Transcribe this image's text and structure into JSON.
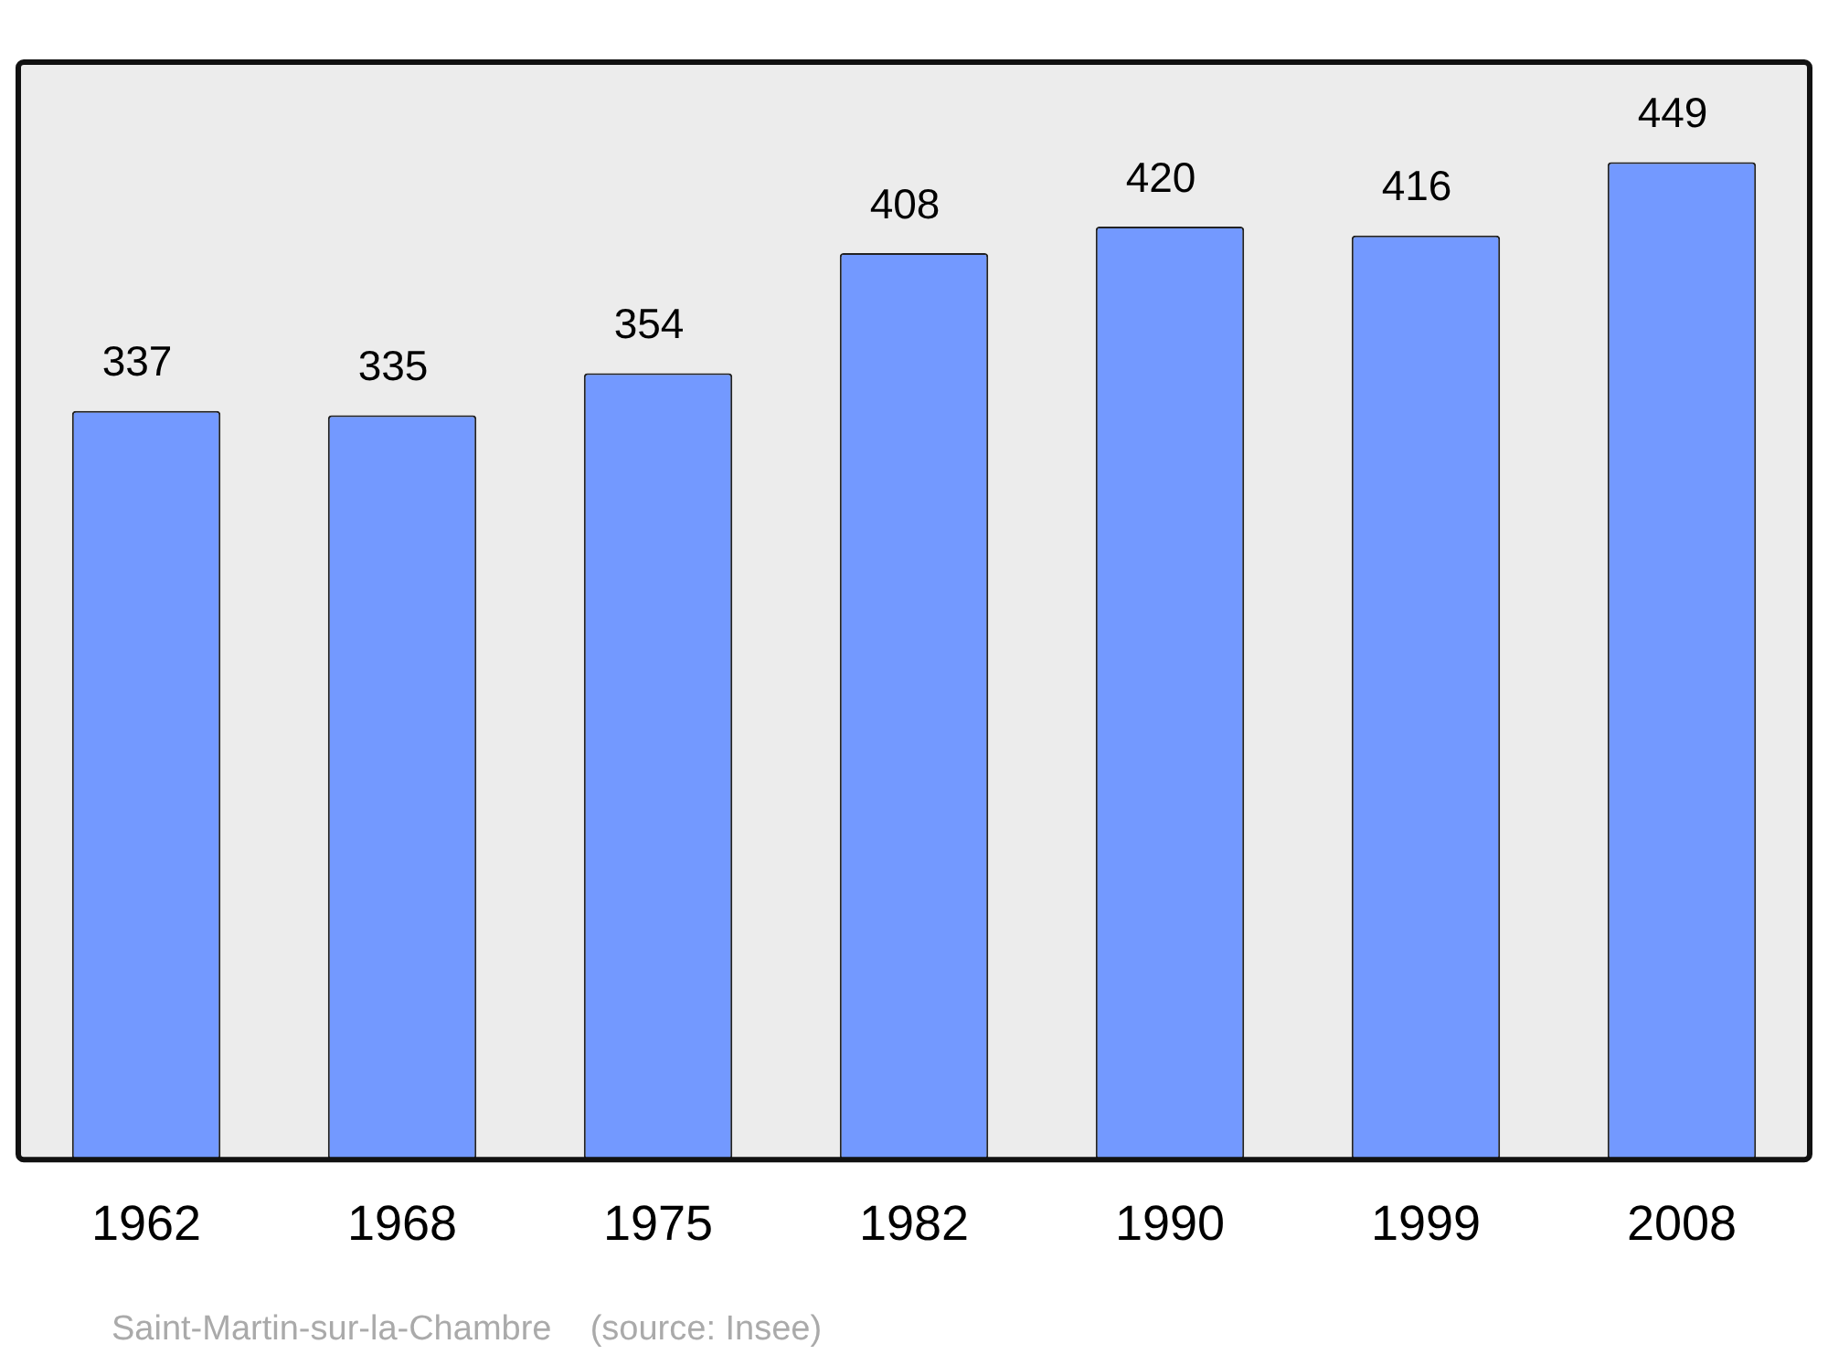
{
  "chart_data": {
    "type": "bar",
    "categories": [
      "1962",
      "1968",
      "1975",
      "1982",
      "1990",
      "1999",
      "2008"
    ],
    "values": [
      337,
      335,
      354,
      408,
      420,
      416,
      449
    ],
    "color": "#7399ff",
    "ylim": [
      0,
      494
    ],
    "data_labels": true,
    "grid": false,
    "legend": false,
    "annotations": [
      "Saint-Martin-sur-la-Chambre    (source: Insee)"
    ]
  }
}
